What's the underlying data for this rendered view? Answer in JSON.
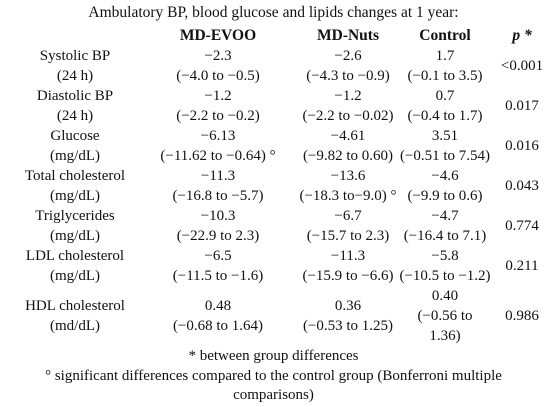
{
  "title": "Ambulatory BP, blood glucose and lipids changes at 1 year:",
  "headers": {
    "md_evoo": "MD-EVOO",
    "md_nuts": "MD-Nuts",
    "control": "Control",
    "p": "p *"
  },
  "rows": [
    {
      "label": [
        "Systolic BP",
        "(24 h)"
      ],
      "md_evoo": [
        "−2.3",
        "(−4.0 to −0.5)"
      ],
      "md_nuts": [
        "−2.6",
        "(−4.3 to −0.9)"
      ],
      "control": [
        "1.7",
        "(−0.1 to 3.5)"
      ],
      "p": "<0.001"
    },
    {
      "label": [
        "Diastolic BP",
        "(24 h)"
      ],
      "md_evoo": [
        "−1.2",
        "(−2.2 to −0.2)"
      ],
      "md_nuts": [
        "−1.2",
        "(−2.2 to −0.02)"
      ],
      "control": [
        "0.7",
        "(−0.4 to 1.7)"
      ],
      "p": "0.017"
    },
    {
      "label": [
        "Glucose",
        "(mg/dL)"
      ],
      "md_evoo": [
        "−6.13",
        "(−11.62 to −0.64) °"
      ],
      "md_nuts": [
        "−4.61",
        "(−9.82 to 0.60)"
      ],
      "control": [
        "3.51",
        "(−0.51 to 7.54)"
      ],
      "p": "0.016"
    },
    {
      "label": [
        "Total cholesterol",
        "(mg/dL)"
      ],
      "md_evoo": [
        "−11.3",
        "(−16.8 to −5.7)"
      ],
      "md_nuts": [
        "−13.6",
        "(−18.3 to−9.0) °"
      ],
      "control": [
        "−4.6",
        "(−9.9 to 0.6)"
      ],
      "p": "0.043"
    },
    {
      "label": [
        "Triglycerides",
        "(mg/dL)"
      ],
      "md_evoo": [
        "−10.3",
        "(−22.9 to 2.3)"
      ],
      "md_nuts": [
        "−6.7",
        "(−15.7 to 2.3)"
      ],
      "control": [
        "−4.7",
        "(−16.4 to 7.1)"
      ],
      "p": "0.774"
    },
    {
      "label": [
        "LDL cholesterol",
        "(mg/dL)"
      ],
      "md_evoo": [
        "−6.5",
        "(−11.5 to −1.6)"
      ],
      "md_nuts": [
        "−11.3",
        "(−15.9 to −6.6)"
      ],
      "control": [
        "−5.8",
        "(−10.5 to −1.2)"
      ],
      "p": "0.211"
    },
    {
      "label": [
        "HDL cholesterol",
        "(md/dL)"
      ],
      "md_evoo": [
        "0.48",
        "(−0.68 to 1.64)"
      ],
      "md_nuts": [
        "0.36",
        "(−0.53 to 1.25)"
      ],
      "control": [
        "0.40",
        "(−0.56 to",
        "1.36)"
      ],
      "p": "0.986"
    }
  ],
  "footnotes": [
    "* between group differences",
    "° significant differences compared to the control group (Bonferroni multiple",
    "comparisons)"
  ]
}
